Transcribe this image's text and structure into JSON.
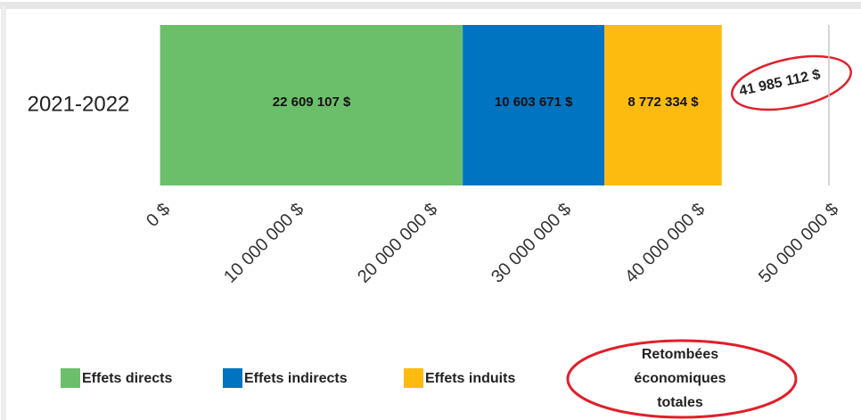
{
  "chart_data": {
    "type": "stacked-barh",
    "categories": [
      "2021-2022"
    ],
    "series": [
      {
        "name": "Effets directs",
        "color": "#6cbf6a",
        "values": [
          22609107
        ],
        "value_labels": [
          "22 609 107 $"
        ]
      },
      {
        "name": "Effets indirects",
        "color": "#0073c1",
        "values": [
          10603671
        ],
        "value_labels": [
          "10 603 671 $"
        ]
      },
      {
        "name": "Effets induits",
        "color": "#fdbb10",
        "values": [
          8772334
        ],
        "value_labels": [
          "8 772 334 $"
        ]
      }
    ],
    "total": 41985112,
    "total_label": "41 985 112 $",
    "annotation": [
      "Retombées",
      "économiques",
      "totales"
    ],
    "xlim": [
      0,
      50000000
    ],
    "xticks": [
      {
        "value": 0,
        "label": "0 $"
      },
      {
        "value": 10000000,
        "label": "10 000 000 $"
      },
      {
        "value": 20000000,
        "label": "20 000 000 $"
      },
      {
        "value": 30000000,
        "label": "30 000 000 $"
      },
      {
        "value": 40000000,
        "label": "40 000 000 $"
      },
      {
        "value": 50000000,
        "label": "50 000 000 $"
      }
    ],
    "grid": true
  }
}
